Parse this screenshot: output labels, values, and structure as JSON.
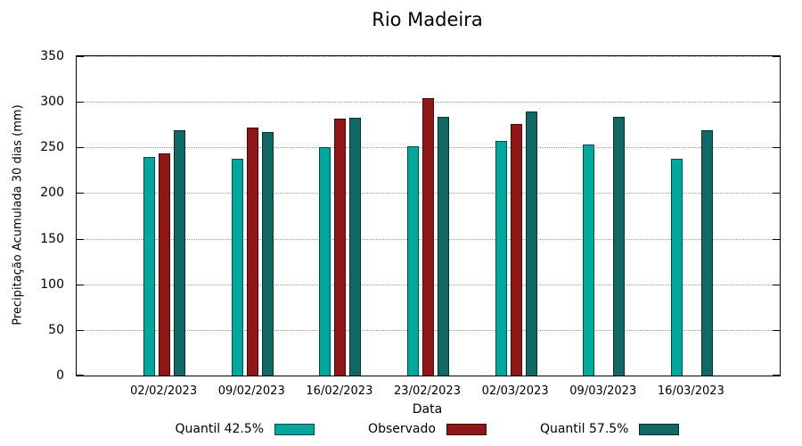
{
  "chart_data": {
    "type": "bar",
    "title": "Rio Madeira",
    "xlabel": "Data",
    "ylabel": "Precipitação Acumulada 30 dias (mm)",
    "ylim": [
      0,
      350
    ],
    "yticks": [
      0,
      50,
      100,
      150,
      200,
      250,
      300,
      350
    ],
    "grid": true,
    "legend_position": "bottom",
    "categories": [
      "02/02/2023",
      "09/02/2023",
      "16/02/2023",
      "23/02/2023",
      "02/03/2023",
      "09/03/2023",
      "16/03/2023"
    ],
    "series": [
      {
        "name": "Quantil 42.5%",
        "color": "#00A79C",
        "values": [
          240,
          238,
          250,
          251,
          257,
          253,
          238
        ]
      },
      {
        "name": "Observado",
        "color": "#8F1717",
        "values": [
          243,
          272,
          282,
          304,
          276,
          null,
          null
        ]
      },
      {
        "name": "Quantil 57.5%",
        "color": "#116864",
        "values": [
          269,
          267,
          283,
          284,
          289,
          284,
          269
        ]
      }
    ]
  }
}
